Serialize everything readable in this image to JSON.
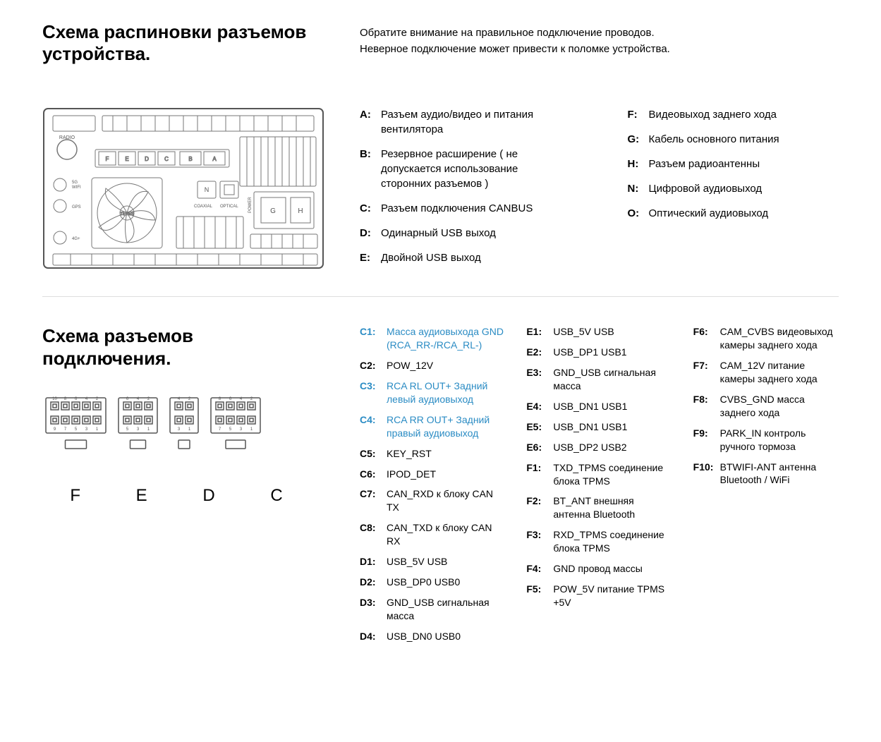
{
  "section1": {
    "title": "Схема распиновки разъемов устройства.",
    "note_line1": "Обратите внимание на правильное подключение проводов.",
    "note_line2": "Неверное подключение может привести к поломке устройства.",
    "legend_left": [
      {
        "k": "A:",
        "v": "Разъем аудио/видео и питания вентилятора"
      },
      {
        "k": "B:",
        "v": "Резервное расширение ( не допускается использование сторонних разъемов )"
      },
      {
        "k": "C:",
        "v": "Разъем подключения CANBUS"
      },
      {
        "k": "D:",
        "v": "Одинарный USB выход"
      },
      {
        "k": "E:",
        "v": "Двойной USB выход"
      }
    ],
    "legend_right": [
      {
        "k": "F:",
        "v": "Видеовыход заднего хода"
      },
      {
        "k": "G:",
        "v": "Кабель основного питания"
      },
      {
        "k": "H:",
        "v": "Разъем радиоантенны"
      },
      {
        "k": "N:",
        "v": "Цифровой аудиовыход"
      },
      {
        "k": "O:",
        "v": "Оптический аудиовыход"
      }
    ],
    "diagram": {
      "labels": {
        "radio": "RADIO",
        "wifi": "5G\nWIFI",
        "gps": "GPS",
        "fourg": "4G+",
        "brand": "TEYES",
        "coaxial": "COAXIAL",
        "optical": "OPTICAL",
        "power": "POWER",
        "n": "N",
        "g": "G",
        "h": "H",
        "ports": [
          "F",
          "E",
          "D",
          "C",
          "B",
          "A"
        ]
      }
    }
  },
  "section2": {
    "title": "Схема разъемов подключения.",
    "connector_labels": [
      "F",
      "E",
      "D",
      "C"
    ],
    "connectors": {
      "F": {
        "top": [
          "10",
          "8",
          "6",
          "4",
          "2"
        ],
        "bot": [
          "9",
          "7",
          "5",
          "3",
          "1"
        ]
      },
      "E": {
        "top": [
          "6",
          "4",
          "2"
        ],
        "bot": [
          "5",
          "3",
          "1"
        ]
      },
      "D": {
        "top": [
          "4",
          "2"
        ],
        "bot": [
          "3",
          "1"
        ]
      },
      "C": {
        "top": [
          "8",
          "6",
          "4",
          "2"
        ],
        "bot": [
          "7",
          "5",
          "3",
          "1"
        ]
      }
    },
    "highlight_color": "#2b8cc4",
    "pins_col1": [
      {
        "k": "C1:",
        "v": "Масса аудиовыхода GND (RCA_RR-/RCA_RL-)",
        "hl": true
      },
      {
        "k": "C2:",
        "v": "POW_12V",
        "hl": false
      },
      {
        "k": "C3:",
        "v": "RCA RL OUT+ Задний левый аудиовыход",
        "hl": true
      },
      {
        "k": "C4:",
        "v": "RCA RR OUT+ Задний правый аудиовыход",
        "hl": true
      },
      {
        "k": "C5:",
        "v": "KEY_RST",
        "hl": false
      },
      {
        "k": "C6:",
        "v": "IPOD_DET",
        "hl": false
      },
      {
        "k": "C7:",
        "v": "CAN_RXD к блоку CAN TX",
        "hl": false
      },
      {
        "k": "C8:",
        "v": "CAN_TXD к блоку CAN RX",
        "hl": false
      },
      {
        "k": "D1:",
        "v": "USB_5V USB",
        "hl": false
      },
      {
        "k": "D2:",
        "v": "USB_DP0 USB0",
        "hl": false
      },
      {
        "k": "D3:",
        "v": "GND_USB сигнальная масса",
        "hl": false
      },
      {
        "k": "D4:",
        "v": "USB_DN0 USB0",
        "hl": false
      }
    ],
    "pins_col2": [
      {
        "k": "E1:",
        "v": "USB_5V USB",
        "hl": false
      },
      {
        "k": "E2:",
        "v": "USB_DP1 USB1",
        "hl": false
      },
      {
        "k": "E3:",
        "v": "GND_USB сигнальная масса",
        "hl": false
      },
      {
        "k": "E4:",
        "v": "USB_DN1 USB1",
        "hl": false
      },
      {
        "k": "E5:",
        "v": "USB_DN1 USB1",
        "hl": false
      },
      {
        "k": "E6:",
        "v": "USB_DP2 USB2",
        "hl": false
      },
      {
        "k": "F1:",
        "v": "TXD_TPMS соединение блока TPMS",
        "hl": false
      },
      {
        "k": "F2:",
        "v": "BT_ANT внешняя антенна Bluetooth",
        "hl": false
      },
      {
        "k": "F3:",
        "v": "RXD_TPMS соединение блока TPMS",
        "hl": false
      },
      {
        "k": "F4:",
        "v": "GND провод массы",
        "hl": false
      },
      {
        "k": "F5:",
        "v": "POW_5V питание TPMS +5V",
        "hl": false
      }
    ],
    "pins_col3": [
      {
        "k": "F6:",
        "v": "CAM_CVBS видеовыход камеры заднего хода",
        "hl": false
      },
      {
        "k": "F7:",
        "v": "CAM_12V питание камеры заднего хода",
        "hl": false
      },
      {
        "k": "F8:",
        "v": "CVBS_GND масса заднего хода",
        "hl": false
      },
      {
        "k": "F9:",
        "v": "PARK_IN контроль ручного тормоза",
        "hl": false
      },
      {
        "k": "F10:",
        "v": "BTWIFI-ANT антенна Bluetooth / WiFi",
        "hl": false
      }
    ]
  }
}
